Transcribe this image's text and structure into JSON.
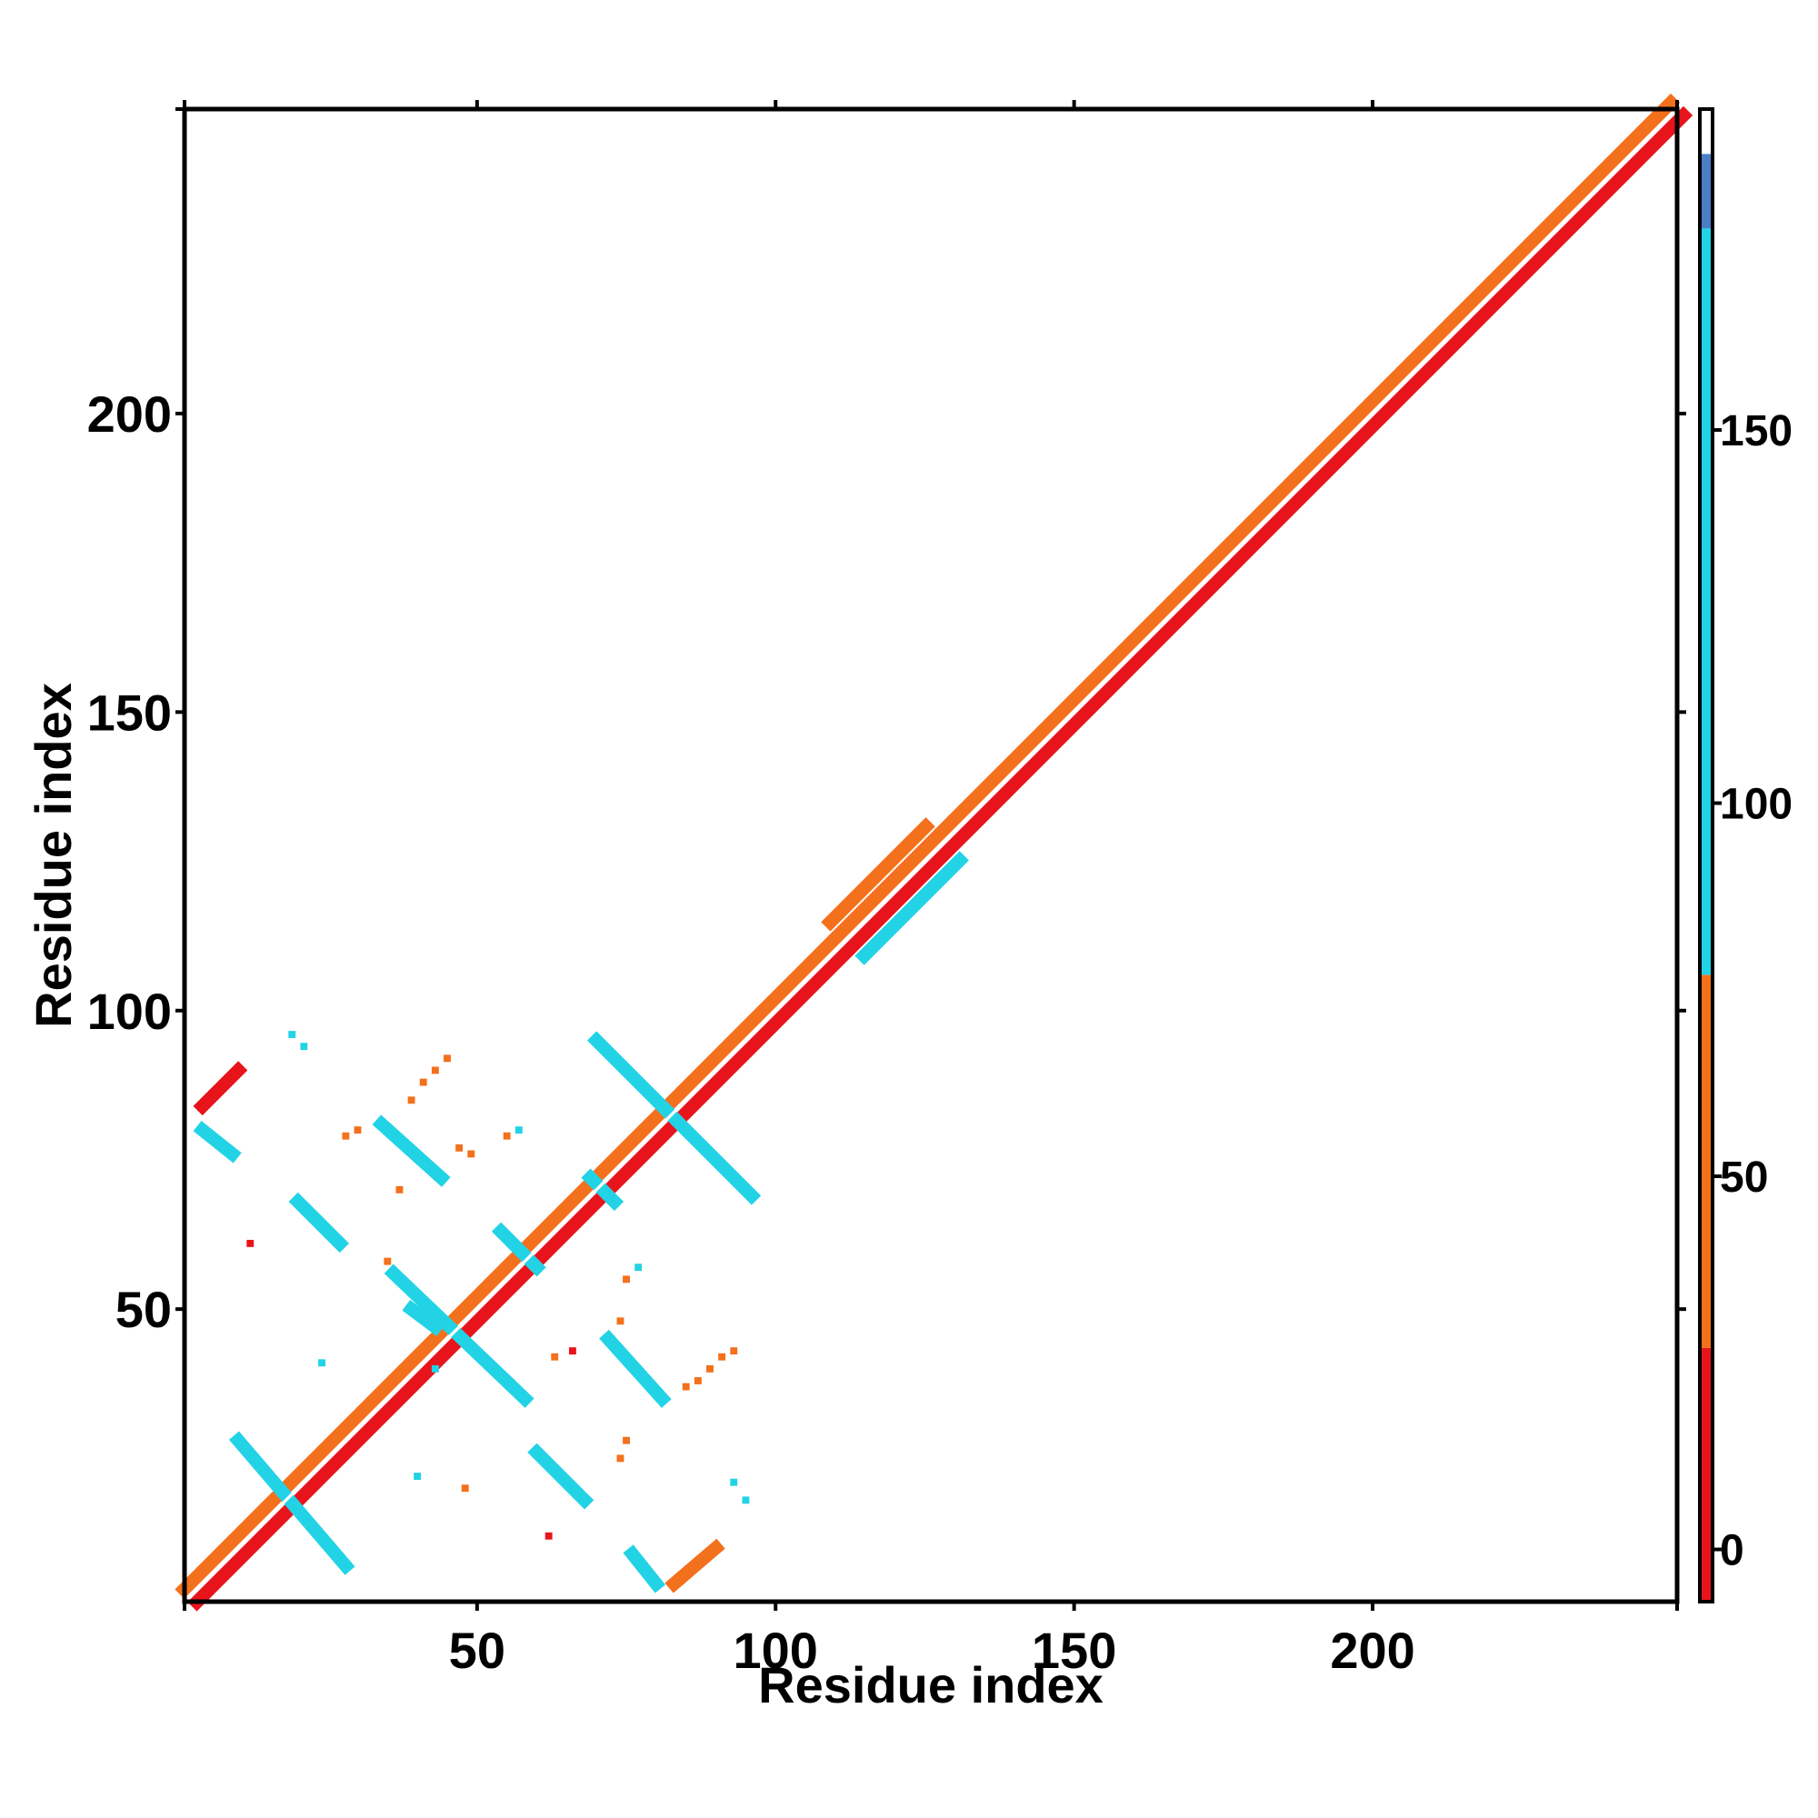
{
  "chart_data": {
    "type": "heatmap",
    "xlabel": "Residue index",
    "ylabel": "Residue index",
    "xlim": [
      1,
      251
    ],
    "ylim": [
      1,
      251
    ],
    "x_ticks": [
      50,
      100,
      150,
      200
    ],
    "y_ticks": [
      50,
      100,
      150,
      200
    ],
    "colorbar": {
      "ticks": [
        0,
        50,
        100,
        150
      ],
      "range": [
        -7,
        193
      ],
      "bands": [
        {
          "from": -7,
          "to": 27,
          "color": "#e8141b"
        },
        {
          "from": 27,
          "to": 77,
          "color": "#f3701c"
        },
        {
          "from": 77,
          "to": 177,
          "color": "#22d3e6"
        },
        {
          "from": 177,
          "to": 187,
          "color": "#4a7fc6"
        },
        {
          "from": 187,
          "to": 193,
          "color": "#ffffff"
        }
      ]
    },
    "contact_segments": [
      {
        "x0": 2,
        "y0": 2,
        "x1": 251,
        "y1": 251,
        "offset": -1.5,
        "value": 10
      },
      {
        "x0": 2,
        "y0": 2,
        "x1": 251,
        "y1": 251,
        "offset": 1.5,
        "value": 40
      },
      {
        "x0": 10,
        "y0": 28,
        "x1": 28,
        "y1": 7,
        "value": 120
      },
      {
        "x0": 20,
        "y0": 68,
        "x1": 27,
        "y1": 61,
        "value": 130
      },
      {
        "x0": 4,
        "y0": 80,
        "x1": 9,
        "y1": 76,
        "value": 125
      },
      {
        "x0": 4,
        "y0": 84,
        "x1": 10,
        "y1": 90,
        "value": 15
      },
      {
        "x0": 34,
        "y0": 81,
        "x1": 44,
        "y1": 72,
        "value": 120
      },
      {
        "x0": 36,
        "y0": 56,
        "x1": 58,
        "y1": 35,
        "value": 150
      },
      {
        "x0": 54,
        "y0": 63,
        "x1": 60,
        "y1": 57,
        "value": 110
      },
      {
        "x0": 70,
        "y0": 95,
        "x1": 96,
        "y1": 69,
        "value": 155
      },
      {
        "x0": 72,
        "y0": 45,
        "x1": 81,
        "y1": 35,
        "value": 140
      },
      {
        "x0": 60,
        "y0": 26,
        "x1": 68,
        "y1": 18,
        "value": 150
      },
      {
        "x0": 76,
        "y0": 9,
        "x1": 80,
        "y1": 4,
        "value": 120
      },
      {
        "x0": 83,
        "y0": 4,
        "x1": 90,
        "y1": 10,
        "value": 40
      },
      {
        "x0": 69,
        "y0": 72,
        "x1": 73,
        "y1": 68,
        "value": 110
      },
      {
        "x0": 39,
        "y0": 50,
        "x1": 43,
        "y1": 47,
        "value": 130
      },
      {
        "x0": 112,
        "y0": 112,
        "x1": 128,
        "y1": 128,
        "offset": 4,
        "value": 60
      },
      {
        "x0": 112,
        "y0": 112,
        "x1": 128,
        "y1": 128,
        "offset": -4,
        "value": 110
      }
    ],
    "contact_cells": [
      {
        "x": 28,
        "y": 79,
        "value": 40
      },
      {
        "x": 30,
        "y": 80,
        "value": 40
      },
      {
        "x": 43,
        "y": 40,
        "value": 130
      },
      {
        "x": 12,
        "y": 61,
        "value": 10
      },
      {
        "x": 41,
        "y": 88,
        "value": 40
      },
      {
        "x": 43,
        "y": 90,
        "value": 40
      },
      {
        "x": 45,
        "y": 92,
        "value": 40
      },
      {
        "x": 55,
        "y": 79,
        "value": 40
      },
      {
        "x": 57,
        "y": 80,
        "value": 120
      },
      {
        "x": 47,
        "y": 77,
        "value": 40
      },
      {
        "x": 49,
        "y": 76,
        "value": 40
      },
      {
        "x": 39,
        "y": 85,
        "value": 40
      },
      {
        "x": 37,
        "y": 70,
        "value": 40
      },
      {
        "x": 35,
        "y": 58,
        "value": 40
      },
      {
        "x": 63,
        "y": 42,
        "value": 40
      },
      {
        "x": 66,
        "y": 43,
        "value": 10
      },
      {
        "x": 75,
        "y": 55,
        "value": 40
      },
      {
        "x": 77,
        "y": 57,
        "value": 120
      },
      {
        "x": 74,
        "y": 48,
        "value": 40
      },
      {
        "x": 89,
        "y": 40,
        "value": 40
      },
      {
        "x": 91,
        "y": 42,
        "value": 40
      },
      {
        "x": 93,
        "y": 43,
        "value": 40
      },
      {
        "x": 85,
        "y": 37,
        "value": 40
      },
      {
        "x": 87,
        "y": 38,
        "value": 40
      },
      {
        "x": 75,
        "y": 28,
        "value": 40
      },
      {
        "x": 74,
        "y": 25,
        "value": 40
      },
      {
        "x": 62,
        "y": 12,
        "value": 10
      },
      {
        "x": 95,
        "y": 18,
        "value": 130
      },
      {
        "x": 93,
        "y": 21,
        "value": 120
      },
      {
        "x": 40,
        "y": 22,
        "value": 130
      },
      {
        "x": 24,
        "y": 41,
        "value": 130
      },
      {
        "x": 19,
        "y": 96,
        "value": 130
      },
      {
        "x": 21,
        "y": 94,
        "value": 150
      },
      {
        "x": 48,
        "y": 20,
        "value": 40
      }
    ]
  }
}
